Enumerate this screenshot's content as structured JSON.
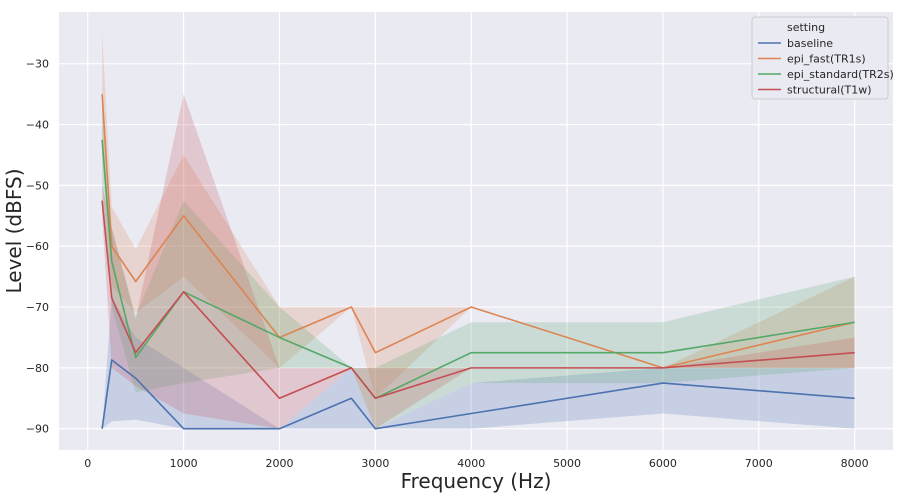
{
  "chart_data": {
    "type": "line",
    "title": "",
    "xlabel": "Frequency (Hz)",
    "ylabel": "Level (dBFS)",
    "xlim": [
      -300,
      8400
    ],
    "ylim": [
      -93.5,
      -21.5
    ],
    "xticks": [
      0,
      1000,
      2000,
      3000,
      4000,
      5000,
      6000,
      7000,
      8000
    ],
    "yticks": [
      -90,
      -80,
      -70,
      -60,
      -50,
      -40,
      -30
    ],
    "grid": true,
    "legend": {
      "title": "setting",
      "position": "top-right"
    },
    "x": [
      150,
      250,
      500,
      1000,
      2000,
      2750,
      3000,
      4000,
      6000,
      8000
    ],
    "series": [
      {
        "name": "baseline",
        "color": "#4c72b0",
        "values": [
          -90,
          -78.7,
          -81.7,
          -90,
          -90,
          -85,
          -90,
          -87.5,
          -82.5,
          -85
        ],
        "band_upper": [
          -90,
          -68.5,
          -75,
          -80,
          -90,
          -80,
          -90,
          -82.5,
          -80,
          -80
        ],
        "band_lower": [
          -90,
          -88.8,
          -88.5,
          -90,
          -90,
          -90,
          -90,
          -90,
          -87.5,
          -90
        ]
      },
      {
        "name": "epi_fast(TR1s)",
        "color": "#dd8452",
        "values": [
          -35,
          -60,
          -65.8,
          -55,
          -75,
          -70,
          -77.5,
          -70,
          -80,
          -72.5
        ],
        "band_upper": [
          -25,
          -53.5,
          -60.5,
          -45,
          -70,
          -70,
          -70,
          -70,
          -80,
          -65
        ],
        "band_lower": [
          -45,
          -66.5,
          -71,
          -65,
          -80,
          -70,
          -85,
          -70,
          -80,
          -80
        ]
      },
      {
        "name": "epi_standard(TR2s)",
        "color": "#55a868",
        "values": [
          -42.5,
          -62.5,
          -78.3,
          -67.5,
          -75,
          -80,
          -85,
          -77.5,
          -77.5,
          -72.5
        ],
        "band_upper": [
          -35,
          -57,
          -71.5,
          -52.5,
          -70,
          -80,
          -80,
          -72.5,
          -72.5,
          -65
        ],
        "band_lower": [
          -50,
          -70,
          -84,
          -82.5,
          -80,
          -80,
          -90,
          -82.5,
          -82.5,
          -80
        ]
      },
      {
        "name": "structural(T1w)",
        "color": "#c44e52",
        "values": [
          -52.5,
          -68.5,
          -77.5,
          -67.5,
          -85,
          -80,
          -85,
          -80,
          -80,
          -77.5
        ],
        "band_upper": [
          -50,
          -57,
          -72,
          -35,
          -80,
          -80,
          -80,
          -80,
          -80,
          -75
        ],
        "band_lower": [
          -55,
          -80,
          -83,
          -87.5,
          -90,
          -80,
          -90,
          -80,
          -80,
          -80
        ]
      }
    ]
  }
}
